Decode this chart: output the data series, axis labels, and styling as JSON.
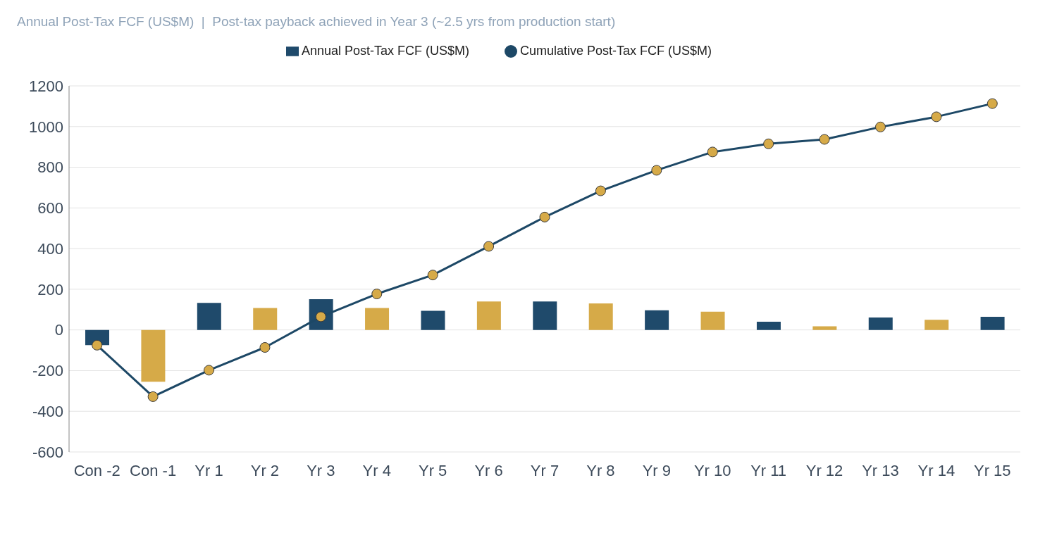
{
  "chart_data": {
    "type": "bar",
    "title": "Annual Post-Tax FCF (US$M)  |  Post-tax payback achieved in Year 3 (~2.5 yrs from production start)",
    "categories": [
      "Con -2",
      "Con -1",
      "Yr 1",
      "Yr 2",
      "Yr 3",
      "Yr 4",
      "Yr 5",
      "Yr 6",
      "Yr 7",
      "Yr 8",
      "Yr 9",
      "Yr 10",
      "Yr 11",
      "Yr 12",
      "Yr 13",
      "Yr 14",
      "Yr 15"
    ],
    "series": [
      {
        "name": "Annual Post-Tax FCF (US$M)",
        "color": "#1f4a6b",
        "colors": [
          "#1f4a6b",
          "#d6aa48",
          "#1f4a6b",
          "#d6aa48",
          "#1f4a6b",
          "#d6aa48",
          "#1f4a6b",
          "#d6aa48",
          "#1f4a6b",
          "#d6aa48",
          "#1f4a6b",
          "#d6aa48",
          "#1f4a6b",
          "#d6aa48",
          "#1f4a6b",
          "#d6aa48",
          "#1f4a6b"
        ],
        "values": [
          -75,
          -255,
          133,
          108,
          151,
          108,
          94,
          140,
          140,
          130,
          97,
          90,
          40,
          18,
          61,
          50,
          65
        ]
      },
      {
        "name": "Cumulative Post-Tax FCF (US$M)",
        "type": "line",
        "color": "#1d4866",
        "colors": [
          "#d6aa48",
          "#d6aa48",
          "#d6aa48",
          "#d6aa48",
          "#d6aa48",
          "#d6aa48",
          "#d6aa48",
          "#d6aa48",
          "#d6aa48",
          "#d6aa48",
          "#d6aa48",
          "#d6aa48",
          "#d6aa48",
          "#d6aa48",
          "#d6aa48",
          "#d6aa48",
          "#d6aa48"
        ],
        "values": [
          -75,
          -328,
          -198,
          -86,
          65,
          177,
          270,
          411,
          555,
          684,
          785,
          875,
          915,
          937,
          998,
          1048,
          1113
        ]
      }
    ],
    "ylim": [
      -600,
      1200
    ],
    "yticks": [
      -600,
      -400,
      -200,
      0,
      200,
      400,
      600,
      800,
      1000,
      1200
    ],
    "grid": "y",
    "legend": "top",
    "marker": "circle",
    "line_style": "solid"
  }
}
